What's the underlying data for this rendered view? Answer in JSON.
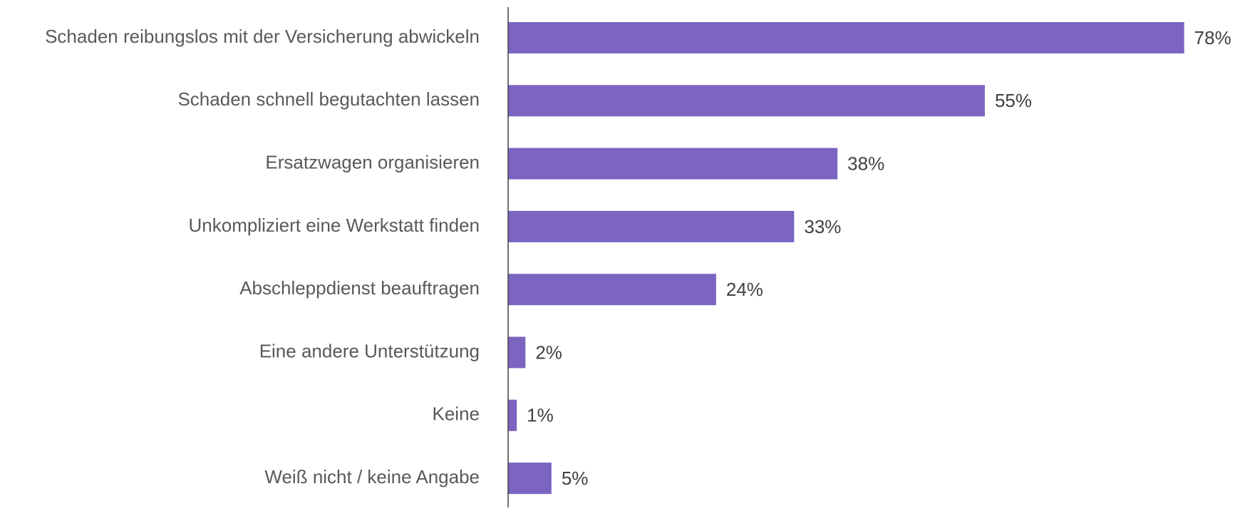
{
  "chart_data": {
    "type": "bar",
    "orientation": "horizontal",
    "categories": [
      "Schaden reibungslos mit der Versicherung abwickeln",
      "Schaden schnell begutachten lassen",
      "Ersatzwagen organisieren",
      "Unkompliziert eine Werkstatt finden",
      "Abschleppdienst beauftragen",
      "Eine andere Unterstützung",
      "Keine",
      "Weiß nicht / keine Angabe"
    ],
    "values": [
      78,
      55,
      38,
      33,
      24,
      2,
      1,
      5
    ],
    "value_labels": [
      "78%",
      "55%",
      "38%",
      "33%",
      "24%",
      "2%",
      "1%",
      "5%"
    ],
    "color": "#7b65c1",
    "xlim": [
      0,
      80
    ]
  }
}
